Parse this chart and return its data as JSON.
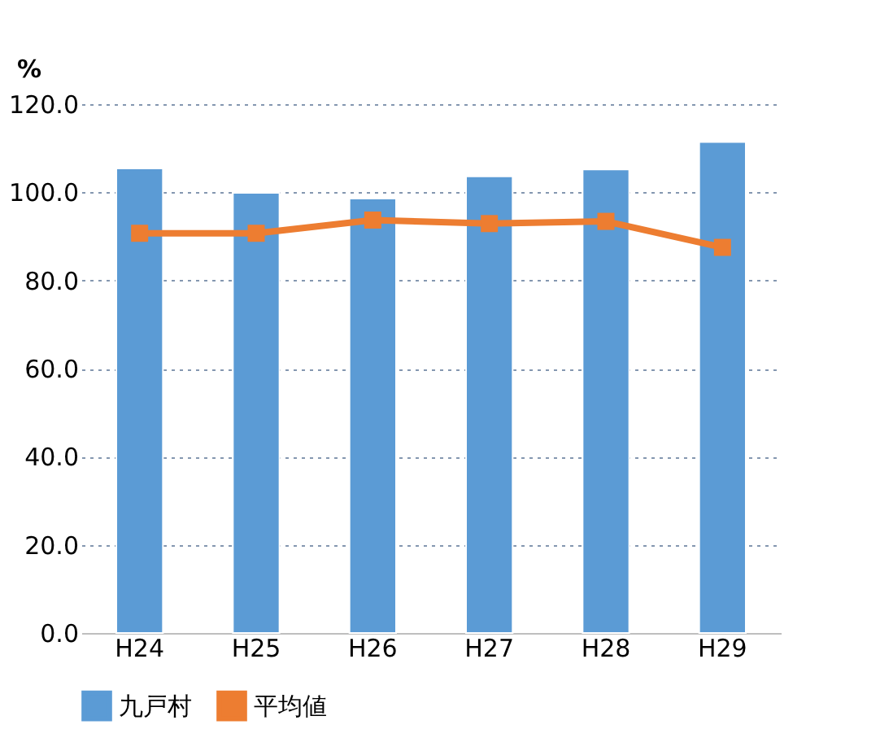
{
  "chart_data": {
    "type": "bar",
    "ylabel": "%",
    "categories": [
      "H24",
      "H25",
      "H26",
      "H27",
      "H28",
      "H29"
    ],
    "series": [
      {
        "name": "九戸村",
        "color": "#5b9bd5",
        "values": [
          105.4,
          99.9,
          98.6,
          103.6,
          105.2,
          111.4
        ]
      },
      {
        "name": "平均値",
        "type": "line",
        "color": "#ed7d31",
        "values": [
          90.7,
          90.7,
          93.7,
          92.9,
          93.4,
          87.5
        ],
        "marker": "square"
      }
    ],
    "ylim": [
      0,
      120
    ],
    "yticks": [
      {
        "value": 0,
        "label": "0.0"
      },
      {
        "value": 20,
        "label": "20.0"
      },
      {
        "value": 40,
        "label": "40.0"
      },
      {
        "value": 60,
        "label": "60.0"
      },
      {
        "value": 80,
        "label": "80.0"
      },
      {
        "value": 100,
        "label": "100.0"
      },
      {
        "value": 120,
        "label": "120.0"
      }
    ],
    "grid": "y",
    "legend": "bottom"
  }
}
